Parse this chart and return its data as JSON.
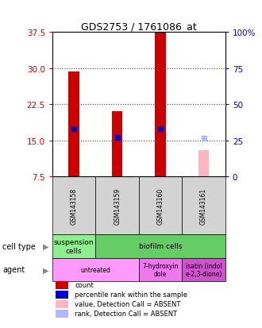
{
  "title": "GDS2753 / 1761086_at",
  "samples": [
    "GSM143158",
    "GSM143159",
    "GSM143160",
    "GSM143161"
  ],
  "bar_values": [
    29.3,
    21.0,
    37.5,
    null
  ],
  "bar_colors": [
    "#cc0000",
    "#cc0000",
    "#cc0000",
    null
  ],
  "absent_bar_values": [
    null,
    null,
    null,
    13.0
  ],
  "absent_bar_color": "#ffb6c1",
  "percentile_values": [
    17.5,
    15.7,
    17.5,
    null
  ],
  "percentile_colors": [
    "#0000cc",
    "#0000cc",
    "#0000cc",
    null
  ],
  "absent_rank_values": [
    null,
    null,
    null,
    15.5
  ],
  "absent_rank_color": "#b0b8ff",
  "ylim_left": [
    7.5,
    37.5
  ],
  "yticks_left": [
    7.5,
    15.0,
    22.5,
    30.0,
    37.5
  ],
  "ylim_right": [
    0,
    100
  ],
  "yticks_right": [
    0,
    25,
    50,
    75,
    100
  ],
  "yticklabels_right": [
    "0",
    "25",
    "50",
    "75",
    "100%"
  ],
  "left_tick_color": "#cc0000",
  "right_tick_color": "#0000cc",
  "cell_type_cells": [
    {
      "text": "suspension\ncells",
      "color": "#90ee90",
      "colspan": 1
    },
    {
      "text": "biofilm cells",
      "color": "#66cc66",
      "colspan": 3
    }
  ],
  "agent_cells": [
    {
      "text": "untreated",
      "color": "#ff99ff",
      "colspan": 2
    },
    {
      "text": "7-hydroxyin\ndole",
      "color": "#ee77ee",
      "colspan": 1
    },
    {
      "text": "isatin (indol\ne-2,3-dione)",
      "color": "#cc55cc",
      "colspan": 1
    }
  ],
  "legend_items": [
    {
      "color": "#cc0000",
      "label": "count"
    },
    {
      "color": "#0000cc",
      "label": "percentile rank within the sample"
    },
    {
      "color": "#ffb6c1",
      "label": "value, Detection Call = ABSENT"
    },
    {
      "color": "#b0b8ff",
      "label": "rank, Detection Call = ABSENT"
    }
  ],
  "bar_width": 0.25,
  "sample_color": "#d3d3d3"
}
